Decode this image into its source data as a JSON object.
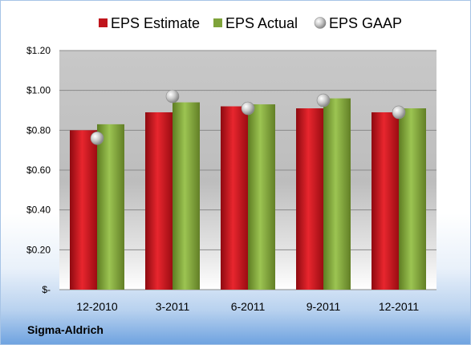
{
  "company": "Sigma-Aldrich",
  "chart_data": {
    "type": "bar",
    "categories": [
      "12-2010",
      "3-2011",
      "6-2011",
      "9-2011",
      "12-2011"
    ],
    "series": [
      {
        "name": "EPS Estimate",
        "kind": "bar",
        "color": "#c0141c",
        "values": [
          0.8,
          0.89,
          0.92,
          0.91,
          0.89
        ]
      },
      {
        "name": "EPS Actual",
        "kind": "bar",
        "color": "#7ea33a",
        "values": [
          0.83,
          0.94,
          0.93,
          0.96,
          0.91
        ]
      },
      {
        "name": "EPS GAAP",
        "kind": "marker",
        "color": "#a9a9a9",
        "values": [
          0.76,
          0.97,
          0.91,
          0.95,
          0.89
        ]
      }
    ],
    "yticks": [
      0,
      0.2,
      0.4,
      0.6,
      0.8,
      1.0,
      1.2
    ],
    "ytick_labels": [
      "$-",
      "$0.20",
      "$0.40",
      "$0.60",
      "$0.80",
      "$1.00",
      "$1.20"
    ],
    "ylim": [
      0,
      1.2
    ],
    "grid": true,
    "legend_position": "top"
  }
}
